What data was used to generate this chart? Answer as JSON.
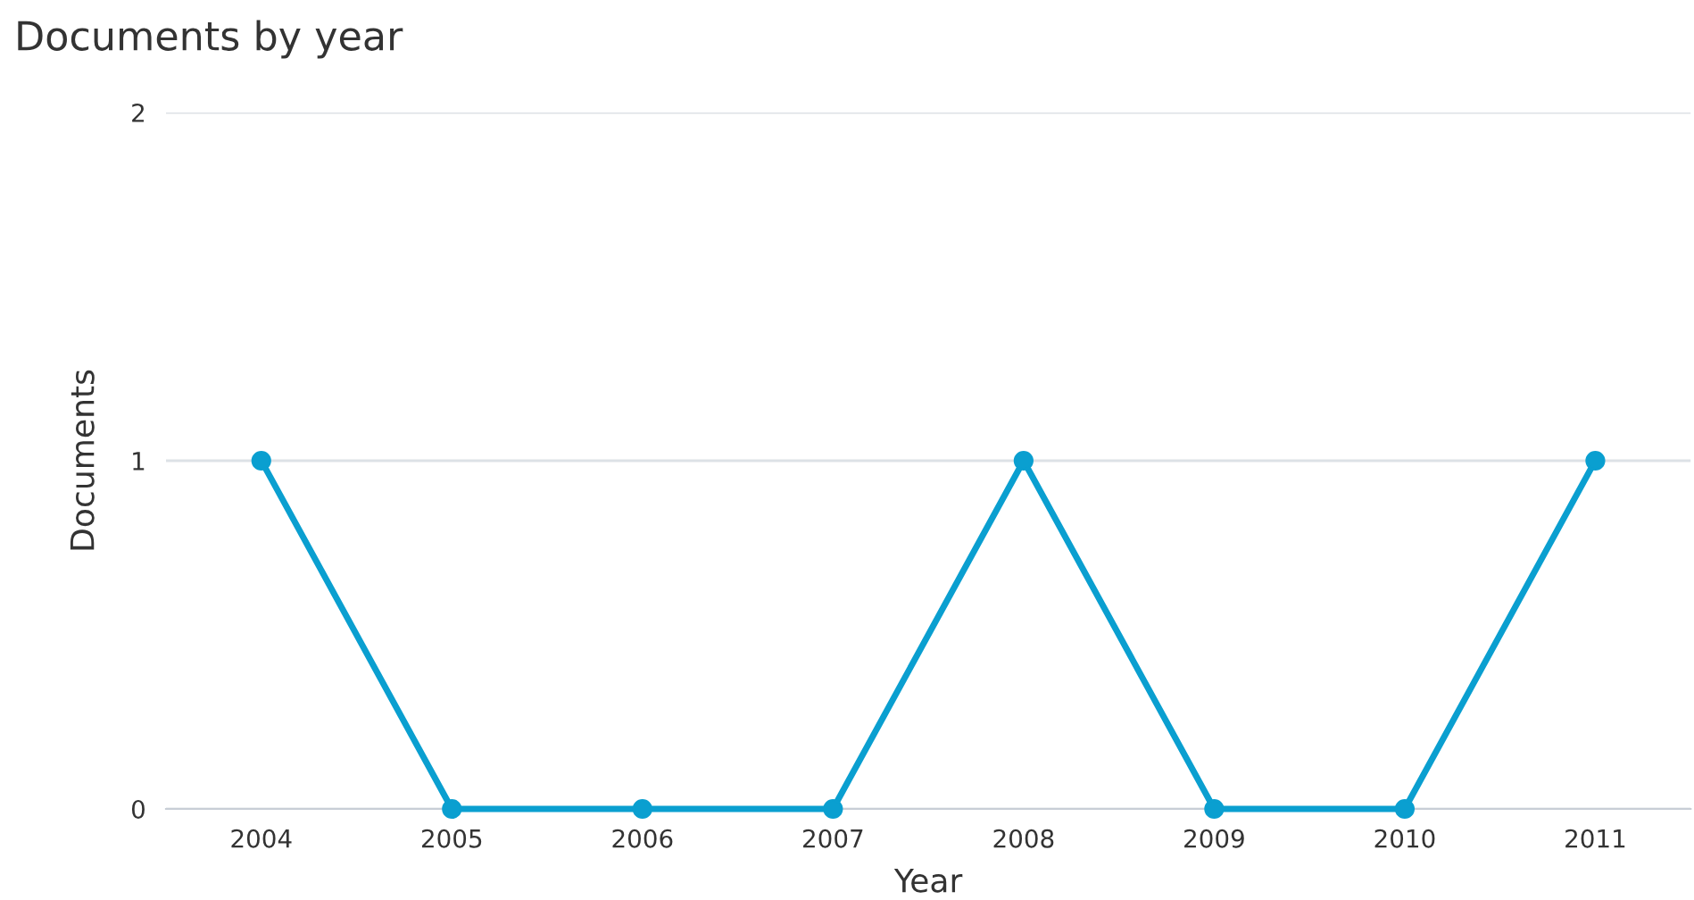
{
  "chart_data": {
    "type": "line",
    "title": "Documents by year",
    "xlabel": "Year",
    "ylabel": "Documents",
    "categories": [
      "2004",
      "2005",
      "2006",
      "2007",
      "2008",
      "2009",
      "2010",
      "2011"
    ],
    "series": [
      {
        "color": "#0a9fd0",
        "values": [
          1,
          0,
          0,
          0,
          1,
          0,
          0,
          1
        ]
      }
    ],
    "ylim": [
      0,
      2
    ],
    "yticks": [
      0,
      1,
      2
    ],
    "grid": "y",
    "marker": "circle",
    "line_style": "solid",
    "legend": false
  }
}
